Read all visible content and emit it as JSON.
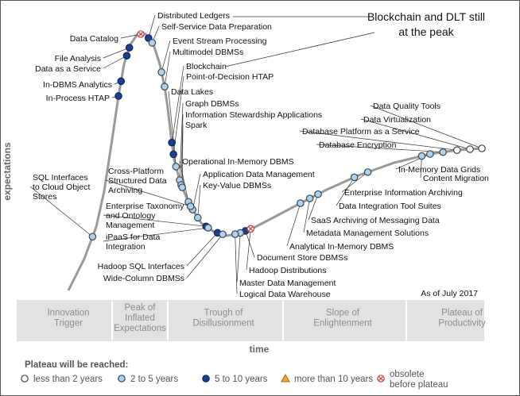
{
  "callout": {
    "line1": "Blockchain and DLT still",
    "line2": "at the peak"
  },
  "chart_data": {
    "type": "scatter",
    "xlabel": "time",
    "ylabel": "expectations",
    "as_of": "As of July 2017",
    "phases": [
      {
        "lines": [
          "Innovation",
          "Trigger"
        ]
      },
      {
        "lines": [
          "Peak of",
          "Inflated",
          "Expectations"
        ]
      },
      {
        "lines": [
          "Trough of",
          "Disillusionment"
        ]
      },
      {
        "lines": [
          "Slope of",
          "Enlightenment"
        ]
      },
      {
        "lines": [
          "Plateau of",
          "Productivity"
        ]
      }
    ],
    "legend": {
      "title": "Plateau will be reached:",
      "items": [
        {
          "key": "lt2",
          "lines": [
            "less than 2 years"
          ]
        },
        {
          "key": "2to5",
          "lines": [
            "2 to 5 years"
          ]
        },
        {
          "key": "5to10",
          "lines": [
            "5 to 10 years"
          ]
        },
        {
          "key": "gt10",
          "lines": [
            "more than 10 years"
          ]
        },
        {
          "key": "obs",
          "lines": [
            "obsolete",
            "before plateau"
          ]
        }
      ]
    },
    "colors": {
      "lt2": "#ffffff",
      "2to5": "#a9d1f0",
      "5to10": "#1b3f8b",
      "gt10": "#f2a33a",
      "obs": "#ffffff",
      "curve": "#999999",
      "plateau_band": "#e2e2e2"
    },
    "technologies": [
      {
        "lines": [
          "Distributed Ledgers"
        ],
        "x": 0.285,
        "cat": "5to10"
      },
      {
        "lines": [
          "Self-Service Data Preparation"
        ],
        "x": 0.292,
        "cat": "2to5"
      },
      {
        "lines": [
          "Data Catalog"
        ],
        "x": 0.27,
        "cat": "obs"
      },
      {
        "lines": [
          "Event Stream Processing"
        ],
        "x": 0.31,
        "cat": "2to5"
      },
      {
        "lines": [
          "Multimodel DBMSs"
        ],
        "x": 0.316,
        "cat": "2to5"
      },
      {
        "lines": [
          "Blockchain"
        ],
        "x": 0.33,
        "cat": "5to10"
      },
      {
        "lines": [
          "Point-of-Decision HTAP"
        ],
        "x": 0.333,
        "cat": "5to10"
      },
      {
        "lines": [
          "File Analysis"
        ],
        "x": 0.248,
        "cat": "5to10"
      },
      {
        "lines": [
          "Data as a Service"
        ],
        "x": 0.243,
        "cat": "5to10"
      },
      {
        "lines": [
          "In-DBMS Analytics"
        ],
        "x": 0.232,
        "cat": "5to10"
      },
      {
        "lines": [
          "In-Process HTAP"
        ],
        "x": 0.227,
        "cat": "5to10"
      },
      {
        "lines": [
          "Data Lakes"
        ],
        "x": 0.338,
        "cat": "2to5"
      },
      {
        "lines": [
          "Graph DBMSs"
        ],
        "x": 0.345,
        "cat": "2to5"
      },
      {
        "lines": [
          "Information Stewardship Applications"
        ],
        "x": 0.348,
        "cat": "2to5"
      },
      {
        "lines": [
          "Spark"
        ],
        "x": 0.35,
        "cat": "2to5"
      },
      {
        "lines": [
          "Operational In-Memory DBMS"
        ],
        "x": 0.362,
        "cat": "2to5"
      },
      {
        "lines": [
          "Application Data Management"
        ],
        "x": 0.37,
        "cat": "2to5"
      },
      {
        "lines": [
          "Key-Value DBMSs"
        ],
        "x": 0.38,
        "cat": "2to5"
      },
      {
        "lines": [
          "SQL Interfaces",
          "to Cloud Object",
          "Stores"
        ],
        "x": 0.177,
        "cat": "2to5"
      },
      {
        "lines": [
          "Cross-Platform",
          "Structured Data",
          "Archiving"
        ],
        "x": 0.366,
        "cat": "2to5"
      },
      {
        "lines": [
          "Enterprise Taxonomy",
          "and Ontology",
          "Management"
        ],
        "x": 0.396,
        "cat": "5to10"
      },
      {
        "lines": [
          "iPaaS for Data",
          "Integration"
        ],
        "x": 0.4,
        "cat": "2to5"
      },
      {
        "lines": [
          "Hadoop SQL Interfaces"
        ],
        "x": 0.418,
        "cat": "5to10"
      },
      {
        "lines": [
          "Wide-Column DBMSs"
        ],
        "x": 0.428,
        "cat": "2to5"
      },
      {
        "lines": [
          "Document Store DBMSs"
        ],
        "x": 0.472,
        "cat": "5to10"
      },
      {
        "lines": [
          "Hadoop Distributions"
        ],
        "x": 0.482,
        "cat": "obs"
      },
      {
        "lines": [
          "Master Data Management"
        ],
        "x": 0.462,
        "cat": "2to5"
      },
      {
        "lines": [
          "Logical Data Warehouse"
        ],
        "x": 0.452,
        "cat": "2to5"
      },
      {
        "lines": [
          "Analytical In-Memory DBMS"
        ],
        "x": 0.578,
        "cat": "2to5"
      },
      {
        "lines": [
          "Metadata Management Solutions"
        ],
        "x": 0.596,
        "cat": "2to5"
      },
      {
        "lines": [
          "SaaS Archiving of Messaging Data"
        ],
        "x": 0.612,
        "cat": "2to5"
      },
      {
        "lines": [
          "Data Integration Tool Suites"
        ],
        "x": 0.682,
        "cat": "2to5"
      },
      {
        "lines": [
          "Enterprise Information Archiving"
        ],
        "x": 0.708,
        "cat": "2to5"
      },
      {
        "lines": [
          "Content Migration"
        ],
        "x": 0.812,
        "cat": "2to5"
      },
      {
        "lines": [
          "In-Memory Data Grids"
        ],
        "x": 0.828,
        "cat": "2to5"
      },
      {
        "lines": [
          "Database Encryption"
        ],
        "x": 0.853,
        "cat": "2to5"
      },
      {
        "lines": [
          "Database Platform as a Service"
        ],
        "x": 0.88,
        "cat": "lt2"
      },
      {
        "lines": [
          "Data Virtualization"
        ],
        "x": 0.905,
        "cat": "lt2"
      },
      {
        "lines": [
          "Data Quality Tools"
        ],
        "x": 0.928,
        "cat": "lt2"
      }
    ]
  }
}
